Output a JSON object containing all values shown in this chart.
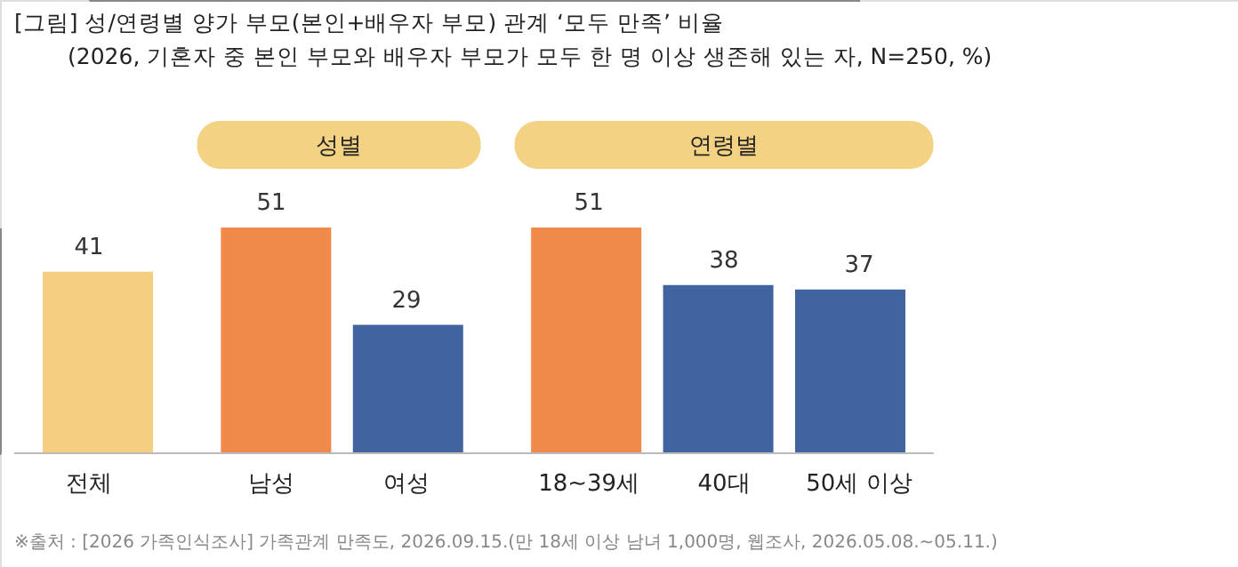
{
  "chart_data": {
    "type": "bar",
    "title": "[그림] 성/연령별 양가 부모(본인+배우자 부모) 관계 ‘모두 만족’ 비율",
    "subtitle": "(2026, 기혼자 중 본인 부모와 배우자 부모가 모두 한 명 이상 생존해 있는 자, N=250, %)",
    "categories": [
      "전체",
      "남성",
      "여성",
      "18~39세",
      "40대",
      "50세 이상"
    ],
    "values": [
      41,
      51,
      29,
      51,
      38,
      37
    ],
    "colors": [
      "#f5cf7f",
      "#f0894a",
      "#41639f",
      "#f0894a",
      "#41639f",
      "#41639f"
    ],
    "data_labels": true,
    "annotations": [
      "성별",
      "연령별",
      "※출처 : [2026 가족인식조사] 가족관계 만족도, 2026.09.15.(만 18세 이상 남녀 1,000명, 웹조사, 2026.05.08.~05.11.)"
    ]
  }
}
